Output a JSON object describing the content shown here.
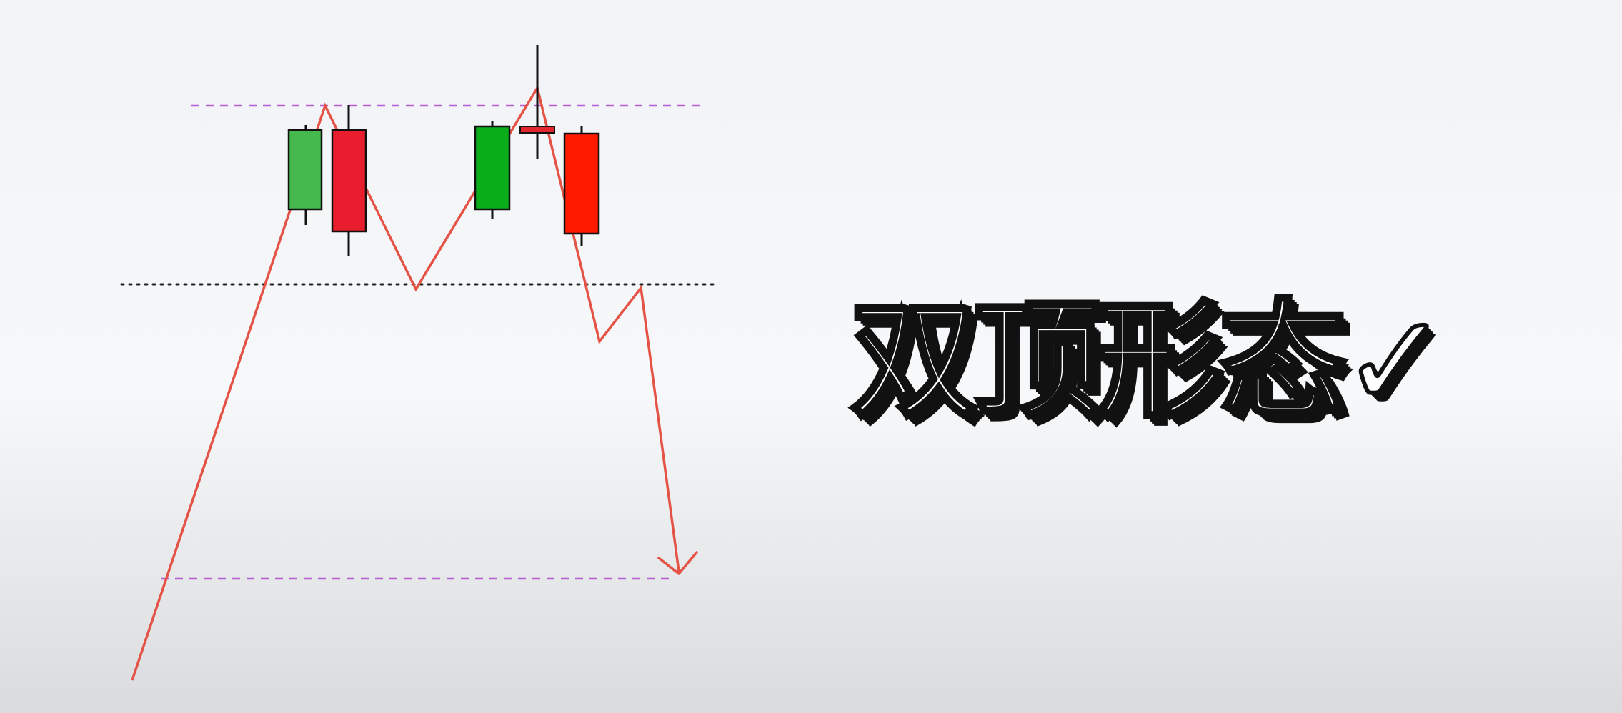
{
  "title": "双顶形态✓",
  "pattern": {
    "levels": [
      {
        "name": "resistance",
        "style": "dashed",
        "color": "#b55fd0"
      },
      {
        "name": "neckline",
        "style": "dotted",
        "color": "#222222"
      },
      {
        "name": "target",
        "style": "dashed",
        "color": "#b55fd0"
      }
    ],
    "path_color": "#e55347",
    "candles": [
      {
        "type": "bullish",
        "color": "#45b84e"
      },
      {
        "type": "bearish",
        "color": "#e81e2e"
      },
      {
        "type": "bullish",
        "color": "#0aad1a"
      },
      {
        "type": "doji",
        "color": "#e3262c"
      },
      {
        "type": "bearish",
        "color": "#ff1a00"
      }
    ]
  }
}
